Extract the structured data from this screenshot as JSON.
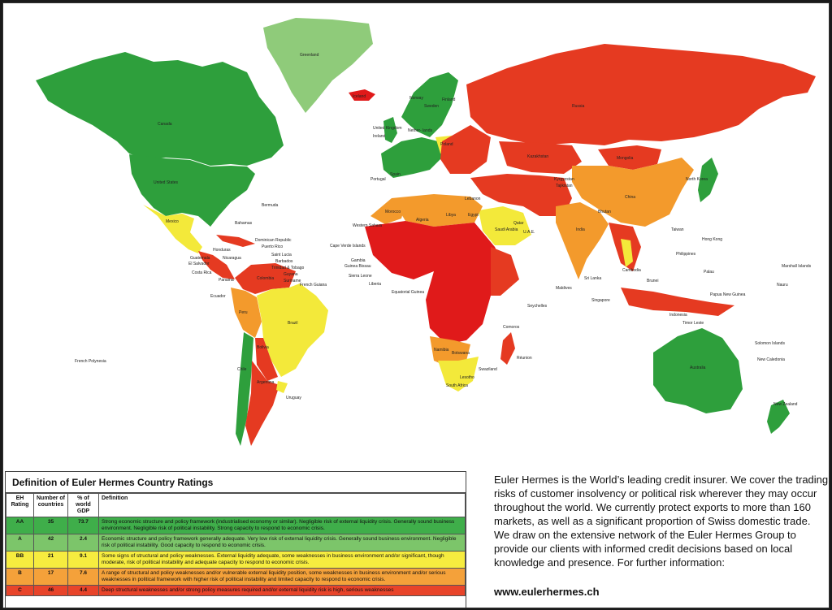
{
  "colors": {
    "ocean": "#ffffff",
    "aa": "#2e9f3c",
    "a": "#78c060",
    "bb": "#f3e93a",
    "b": "#f39a2c",
    "c": "#e53a21",
    "d": "#e01a1a",
    "greenland": "#8fcb7a"
  },
  "map": {
    "labels": {
      "greenland": "Greenland",
      "canada": "Canada",
      "united_states": "United States",
      "mexico": "Mexico",
      "bahamas": "Bahamas",
      "bermuda": "Bermuda",
      "dominican_republic": "Dominican Republic",
      "puerto_rico": "Puerto Rico",
      "saint_lucia": "Saint Lucia",
      "barbados": "Barbados",
      "trinidad": "Trinidad & Tobago",
      "guyana": "Guyana",
      "suriname": "Suriname",
      "french_guiana": "French Guiana",
      "guatemala": "Guatemala",
      "el_salvador": "El Salvador",
      "honduras": "Honduras",
      "nicaragua": "Nicaragua",
      "costa_rica": "Costa Rica",
      "panama": "Panama",
      "ecuador": "Ecuador",
      "peru": "Peru",
      "colombia": "Colombia",
      "brazil": "Brazil",
      "bolivia": "Bolivia",
      "chile": "Chile",
      "argentina": "Argentina",
      "uruguay": "Uruguay",
      "french_polynesia": "French Polynesia",
      "iceland": "Iceland",
      "norway": "Norway",
      "sweden": "Sweden",
      "finland": "Finland",
      "united_kingdom": "United Kingdom",
      "ireland": "Ireland",
      "netherlands": "Nether- lands",
      "poland": "Poland",
      "portugal": "Portugal",
      "spain": "Spain",
      "russia": "Russia",
      "kazakhstan": "Kazakhstan",
      "mongolia": "Mongolia",
      "china": "China",
      "north_korea": "North Korea",
      "kyrgyzstan": "Kyrgyzstan",
      "tajikistan": "Tajikistan",
      "bhutan": "Bhutan",
      "india": "India",
      "taiwan": "Taiwan",
      "hong_kong": "Hong Kong",
      "philippines": "Philippines",
      "palau": "Palau",
      "cambodia": "Cambodia",
      "brunei": "Brunei",
      "singapore": "Singapore",
      "sri_lanka": "Sri Lanka",
      "maldives": "Maldives",
      "papua": "Papua New Guinea",
      "indonesia": "Indonesia",
      "timor": "Timor Leste",
      "australia": "Australia",
      "new_zealand": "New Zealand",
      "marshall": "Marshall Islands",
      "nauru": "Nauru",
      "solomon": "Solomon Islands",
      "new_caledonia": "New Caledonia",
      "western_sahara": "Western Sahara",
      "cape_verde": "Cape Verde Islands",
      "gambia": "Gambia",
      "guinea_bissau": "Guinea Bissau",
      "sierra_leone": "Sierra Leone",
      "liberia": "Liberia",
      "equatorial_guinea": "Equatorial Guinea",
      "morocco": "Morocco",
      "algeria": "Algeria",
      "libya": "Libya",
      "egypt": "Egypt",
      "saudi_arabia": "Saudi Arabia",
      "qatar": "Qatar",
      "uae": "U.A.E.",
      "lebanon": "Lebanon",
      "seychelles": "Seychelles",
      "comoros": "Comoros",
      "reunion": "Réunion",
      "namibia": "Namibia",
      "botswana": "Botswana",
      "south_africa": "South Africa",
      "swaziland": "Swaziland",
      "lesotho": "Lesotho"
    }
  },
  "legend": {
    "title": "Definition of Euler Hermes Country Ratings",
    "headers": [
      "EH Rating",
      "Number of countries",
      "% of world GDP",
      "Definition"
    ],
    "rows": [
      {
        "rating": "AA",
        "count": "35",
        "gdp": "73.7",
        "color": "#3fae4a",
        "definition": "Strong economic structure and policy framework (industrialised economy or similar). Negligible risk of external liquidity crisis. Generally sound business environment. Negligible risk of political instability. Strong capacity to respond to economic crisis."
      },
      {
        "rating": "A",
        "count": "42",
        "gdp": "2.4",
        "color": "#7cc56a",
        "definition": "Economic structure and policy framework generally adequate. Very low risk of external liquidity crisis. Generally sound business environment. Negligible risk of political instability. Good capacity to respond to economic crisis."
      },
      {
        "rating": "BB",
        "count": "21",
        "gdp": "9.1",
        "color": "#f6ec3f",
        "definition": "Some signs of structural and policy weaknesses. External liquidity adequate, some weaknesses in business environment and/or significant, though moderate, risk of political instability and adequate capacity to respond to economic crisis."
      },
      {
        "rating": "B",
        "count": "17",
        "gdp": "7.6",
        "color": "#f4a13a",
        "definition": "A range of structural and policy weaknesses and/or vulnerable external liquidity position, some weaknesses in business environment and/or serious weaknesses in political framework with higher risk of political instability and limited capacity to respond to economic crisis."
      },
      {
        "rating": "C",
        "count": "46",
        "gdp": "4.4",
        "color": "#e8442a",
        "definition": "Deep structural weaknesses and/or strong policy measures required and/or external liquidity risk is high, serious weaknesses"
      }
    ]
  },
  "side": {
    "text": "Euler Hermes is the World’s leading credit insurer. We cover the trading risks of customer insolvency or political risk wherever they may occur throughout the world. We currently protect exports to more than 160 markets, as well as a significant proportion of Swiss domestic trade. We draw on the extensive network of the Euler Hermes Group to provide our clients with informed credit decisions based on local knowledge and presence. For further information:",
    "url": "www.eulerhermes.ch"
  }
}
